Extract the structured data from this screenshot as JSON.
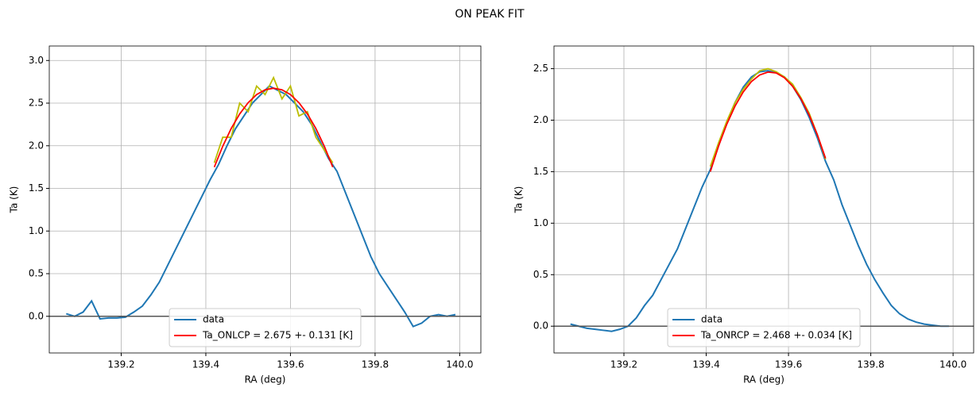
{
  "title": "ON PEAK FIT",
  "chart_data": [
    {
      "type": "line",
      "xlabel": "RA (deg)",
      "ylabel": "Ta (K)",
      "xlim": [
        139.03,
        140.05
      ],
      "ylim": [
        -0.43,
        3.17
      ],
      "xticks": [
        139.2,
        139.4,
        139.6,
        139.8,
        {
          "value": 140.0,
          "label": "140.0"
        }
      ],
      "yticks": [
        {
          "value": 0,
          "label": "0.0"
        },
        0.5,
        {
          "value": 1,
          "label": "1.0"
        },
        1.5,
        {
          "value": 2,
          "label": "2.0"
        },
        2.5,
        {
          "value": 3,
          "label": "3.0"
        }
      ],
      "grid": true,
      "hlines": [
        0
      ],
      "legend": "lower center",
      "series": [
        {
          "name": "data",
          "color": "#1f77b4",
          "x": [
            139.07,
            139.09,
            139.11,
            139.13,
            139.15,
            139.17,
            139.19,
            139.21,
            139.23,
            139.25,
            139.27,
            139.29,
            139.31,
            139.33,
            139.35,
            139.37,
            139.39,
            139.41,
            139.43,
            139.45,
            139.47,
            139.49,
            139.51,
            139.53,
            139.55,
            139.57,
            139.59,
            139.61,
            139.63,
            139.65,
            139.67,
            139.69,
            139.71,
            139.73,
            139.75,
            139.77,
            139.79,
            139.81,
            139.83,
            139.85,
            139.87,
            139.89,
            139.91,
            139.93,
            139.95,
            139.97,
            139.99
          ],
          "values": [
            0.03,
            0.0,
            0.05,
            0.18,
            -0.03,
            -0.02,
            -0.02,
            -0.01,
            0.05,
            0.12,
            0.25,
            0.4,
            0.6,
            0.8,
            1.0,
            1.2,
            1.4,
            1.6,
            1.78,
            2.0,
            2.2,
            2.35,
            2.5,
            2.6,
            2.7,
            2.65,
            2.6,
            2.5,
            2.4,
            2.25,
            2.05,
            1.85,
            1.7,
            1.45,
            1.2,
            0.95,
            0.7,
            0.5,
            0.35,
            0.2,
            0.05,
            -0.12,
            -0.08,
            0.0,
            0.02,
            0.0,
            0.02
          ]
        },
        {
          "color": "#bcbd00",
          "x": [
            139.42,
            139.44,
            139.46,
            139.48,
            139.5,
            139.52,
            139.54,
            139.56,
            139.58,
            139.6,
            139.62,
            139.64,
            139.66,
            139.68,
            139.7
          ],
          "values": [
            1.8,
            2.1,
            2.1,
            2.5,
            2.4,
            2.7,
            2.6,
            2.8,
            2.55,
            2.7,
            2.35,
            2.4,
            2.1,
            1.95,
            1.8
          ]
        },
        {
          "name": "Ta_ONLCP = 2.675 +- 0.131 [K]",
          "color": "#ff0000",
          "x": [
            139.42,
            139.44,
            139.46,
            139.48,
            139.5,
            139.52,
            139.54,
            139.56,
            139.58,
            139.6,
            139.62,
            139.64,
            139.66,
            139.68,
            139.7
          ],
          "values": [
            1.75,
            1.995,
            2.203,
            2.373,
            2.505,
            2.6,
            2.656,
            2.675,
            2.656,
            2.6,
            2.505,
            2.373,
            2.203,
            1.995,
            1.75
          ]
        }
      ]
    },
    {
      "type": "line",
      "xlabel": "RA (deg)",
      "ylabel": "Ta (K)",
      "xlim": [
        139.03,
        140.05
      ],
      "ylim": [
        -0.26,
        2.72
      ],
      "xticks": [
        139.2,
        139.4,
        139.6,
        139.8,
        {
          "value": 140.0,
          "label": "140.0"
        }
      ],
      "yticks": [
        {
          "value": 0,
          "label": "0.0"
        },
        0.5,
        {
          "value": 1,
          "label": "1.0"
        },
        1.5,
        {
          "value": 2,
          "label": "2.0"
        },
        2.5
      ],
      "grid": true,
      "hlines": [
        0
      ],
      "legend": "lower center",
      "series": [
        {
          "name": "data",
          "color": "#1f77b4",
          "x": [
            139.07,
            139.09,
            139.11,
            139.13,
            139.15,
            139.17,
            139.19,
            139.21,
            139.23,
            139.25,
            139.27,
            139.29,
            139.31,
            139.33,
            139.35,
            139.37,
            139.39,
            139.41,
            139.43,
            139.45,
            139.47,
            139.49,
            139.51,
            139.53,
            139.55,
            139.57,
            139.59,
            139.61,
            139.63,
            139.65,
            139.67,
            139.69,
            139.71,
            139.73,
            139.75,
            139.77,
            139.79,
            139.81,
            139.83,
            139.85,
            139.87,
            139.89,
            139.91,
            139.93,
            139.95,
            139.97,
            139.99
          ],
          "values": [
            0.02,
            0.0,
            -0.02,
            -0.03,
            -0.04,
            -0.05,
            -0.03,
            0.0,
            0.08,
            0.2,
            0.3,
            0.45,
            0.6,
            0.75,
            0.95,
            1.15,
            1.35,
            1.52,
            1.75,
            1.98,
            2.17,
            2.32,
            2.42,
            2.47,
            2.48,
            2.46,
            2.42,
            2.33,
            2.2,
            2.03,
            1.83,
            1.6,
            1.42,
            1.18,
            0.98,
            0.78,
            0.6,
            0.45,
            0.32,
            0.2,
            0.12,
            0.07,
            0.04,
            0.02,
            0.01,
            0.0,
            0.0
          ]
        },
        {
          "color": "#bcbd00",
          "x": [
            139.41,
            139.43,
            139.45,
            139.47,
            139.49,
            139.51,
            139.53,
            139.55,
            139.57,
            139.59,
            139.61,
            139.63,
            139.65,
            139.67,
            139.69
          ],
          "values": [
            1.55,
            1.78,
            1.99,
            2.17,
            2.3,
            2.4,
            2.48,
            2.5,
            2.47,
            2.42,
            2.35,
            2.22,
            2.07,
            1.86,
            1.62
          ]
        },
        {
          "name": "Ta_ONRCP = 2.468 +- 0.034 [K]",
          "color": "#ff0000",
          "x": [
            139.41,
            139.43,
            139.45,
            139.47,
            139.49,
            139.51,
            139.53,
            139.55,
            139.57,
            139.59,
            139.61,
            139.63,
            139.65,
            139.67,
            139.69
          ],
          "values": [
            1.501,
            1.749,
            1.961,
            2.136,
            2.274,
            2.375,
            2.439,
            2.467,
            2.458,
            2.412,
            2.329,
            2.209,
            2.053,
            1.86,
            1.63
          ]
        }
      ]
    }
  ]
}
